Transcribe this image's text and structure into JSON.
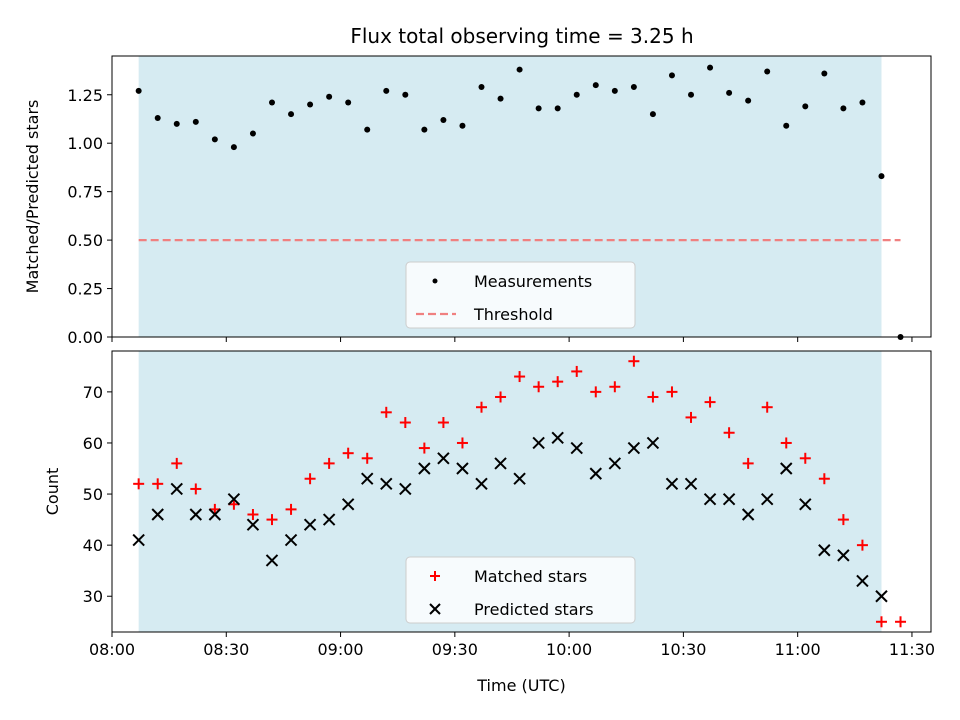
{
  "figure": {
    "title": "Flux total observing time = 3.25 h",
    "span_color": "#add8e6",
    "span_x": [
      "08:07",
      "11:22"
    ]
  },
  "chart_data": [
    {
      "type": "scatter",
      "panel": "top",
      "ylabel": "Matched/Predicted stars",
      "xlabel": "",
      "ylim": [
        0,
        1.45
      ],
      "yticks": [
        "0.00",
        "0.25",
        "0.50",
        "0.75",
        "1.00",
        "1.25"
      ],
      "grid": false,
      "legend_placement": "lower-center",
      "series": [
        {
          "name": "Measurements",
          "marker": "dot",
          "color": "#000000",
          "x": [
            "08:07",
            "08:12",
            "08:17",
            "08:22",
            "08:27",
            "08:32",
            "08:37",
            "08:42",
            "08:47",
            "08:52",
            "08:57",
            "09:02",
            "09:07",
            "09:12",
            "09:17",
            "09:22",
            "09:27",
            "09:32",
            "09:37",
            "09:42",
            "09:47",
            "09:52",
            "09:57",
            "10:02",
            "10:07",
            "10:12",
            "10:17",
            "10:22",
            "10:27",
            "10:32",
            "10:37",
            "10:42",
            "10:47",
            "10:52",
            "10:57",
            "11:02",
            "11:07",
            "11:12",
            "11:17",
            "11:22",
            "11:27"
          ],
          "y": [
            1.27,
            1.13,
            1.1,
            1.11,
            1.02,
            0.98,
            1.05,
            1.21,
            1.15,
            1.2,
            1.24,
            1.21,
            1.07,
            1.27,
            1.25,
            1.07,
            1.12,
            1.09,
            1.29,
            1.23,
            1.38,
            1.18,
            1.18,
            1.25,
            1.3,
            1.27,
            1.29,
            1.15,
            1.35,
            1.25,
            1.39,
            1.26,
            1.22,
            1.37,
            1.09,
            1.19,
            1.36,
            1.18,
            1.21,
            0.83,
            0.0
          ]
        },
        {
          "name": "Threshold",
          "marker": "dashed-line",
          "color": "#f08080",
          "x": [
            "08:07",
            "11:27"
          ],
          "y": [
            0.5,
            0.5
          ]
        }
      ]
    },
    {
      "type": "scatter",
      "panel": "bottom",
      "ylabel": "Count",
      "xlabel": "Time (UTC)",
      "ylim": [
        23,
        78
      ],
      "yticks": [
        "30",
        "40",
        "50",
        "60",
        "70"
      ],
      "xlim": [
        "08:00",
        "11:35"
      ],
      "xticks": [
        "08:00",
        "08:30",
        "09:00",
        "09:30",
        "10:00",
        "10:30",
        "11:00",
        "11:30"
      ],
      "grid": false,
      "legend_placement": "lower-center",
      "series": [
        {
          "name": "Matched stars",
          "marker": "plus",
          "color": "#ff0000",
          "x": [
            "08:07",
            "08:12",
            "08:17",
            "08:22",
            "08:27",
            "08:32",
            "08:37",
            "08:42",
            "08:47",
            "08:52",
            "08:57",
            "09:02",
            "09:07",
            "09:12",
            "09:17",
            "09:22",
            "09:27",
            "09:32",
            "09:37",
            "09:42",
            "09:47",
            "09:52",
            "09:57",
            "10:02",
            "10:07",
            "10:12",
            "10:17",
            "10:22",
            "10:27",
            "10:32",
            "10:37",
            "10:42",
            "10:47",
            "10:52",
            "10:57",
            "11:02",
            "11:07",
            "11:12",
            "11:17",
            "11:22",
            "11:27"
          ],
          "y": [
            52,
            52,
            56,
            51,
            47,
            48,
            46,
            45,
            47,
            53,
            56,
            58,
            57,
            66,
            64,
            59,
            64,
            60,
            67,
            69,
            73,
            71,
            72,
            74,
            70,
            71,
            76,
            69,
            70,
            65,
            68,
            62,
            56,
            67,
            60,
            57,
            53,
            45,
            40,
            25,
            25
          ]
        },
        {
          "name": "Predicted stars",
          "marker": "x",
          "color": "#000000",
          "x": [
            "08:07",
            "08:12",
            "08:17",
            "08:22",
            "08:27",
            "08:32",
            "08:37",
            "08:42",
            "08:47",
            "08:52",
            "08:57",
            "09:02",
            "09:07",
            "09:12",
            "09:17",
            "09:22",
            "09:27",
            "09:32",
            "09:37",
            "09:42",
            "09:47",
            "09:52",
            "09:57",
            "10:02",
            "10:07",
            "10:12",
            "10:17",
            "10:22",
            "10:27",
            "10:32",
            "10:37",
            "10:42",
            "10:47",
            "10:52",
            "10:57",
            "11:02",
            "11:07",
            "11:12",
            "11:17",
            "11:22"
          ],
          "y": [
            41,
            46,
            51,
            46,
            46,
            49,
            44,
            37,
            41,
            44,
            45,
            48,
            53,
            52,
            51,
            55,
            57,
            55,
            52,
            56,
            53,
            60,
            61,
            59,
            54,
            56,
            59,
            60,
            52,
            52,
            49,
            49,
            46,
            49,
            55,
            48,
            39,
            38,
            33,
            30
          ]
        }
      ]
    }
  ]
}
